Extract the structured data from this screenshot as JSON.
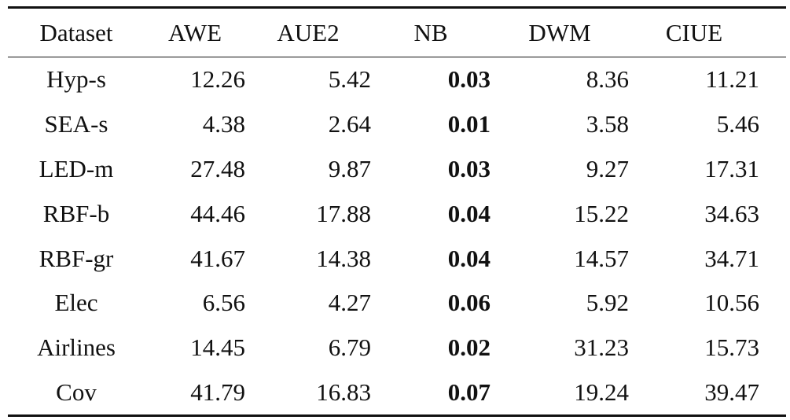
{
  "table": {
    "headers": [
      "Dataset",
      "AWE",
      "AUE2",
      "NB",
      "DWM",
      "CIUE"
    ],
    "rows": [
      {
        "dataset": "Hyp-s",
        "values": [
          "12.26",
          "5.42",
          "0.03",
          "8.36",
          "11.21"
        ]
      },
      {
        "dataset": "SEA-s",
        "values": [
          "4.38",
          "2.64",
          "0.01",
          "3.58",
          "5.46"
        ]
      },
      {
        "dataset": "LED-m",
        "values": [
          "27.48",
          "9.87",
          "0.03",
          "9.27",
          "17.31"
        ]
      },
      {
        "dataset": "RBF-b",
        "values": [
          "44.46",
          "17.88",
          "0.04",
          "15.22",
          "34.63"
        ]
      },
      {
        "dataset": "RBF-gr",
        "values": [
          "41.67",
          "14.38",
          "0.04",
          "14.57",
          "34.71"
        ]
      },
      {
        "dataset": "Elec",
        "values": [
          "6.56",
          "4.27",
          "0.06",
          "5.92",
          "10.56"
        ]
      },
      {
        "dataset": "Airlines",
        "values": [
          "14.45",
          "6.79",
          "0.02",
          "31.23",
          "15.73"
        ]
      },
      {
        "dataset": "Cov",
        "values": [
          "41.79",
          "16.83",
          "0.07",
          "19.24",
          "39.47"
        ]
      }
    ],
    "bold_column_index": 2
  }
}
